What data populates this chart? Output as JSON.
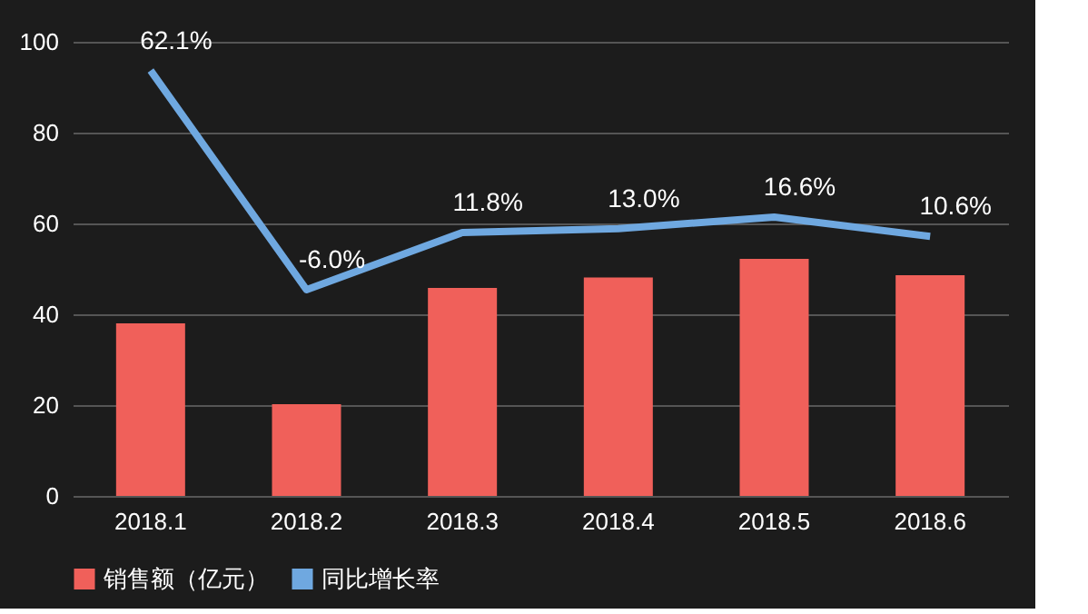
{
  "chart_data": {
    "type": "bar",
    "categories": [
      "2018.1",
      "2018.2",
      "2018.3",
      "2018.4",
      "2018.5",
      "2018.6"
    ],
    "series": [
      {
        "name": "销售额（亿元）",
        "color": "#f0605a",
        "values": [
          38,
          20.2,
          45.8,
          48.1,
          52.2,
          48.6
        ]
      },
      {
        "name": "同比增长率",
        "type": "line",
        "axis": "y2",
        "color": "#6fa8e0",
        "values": [
          62.1,
          -6.0,
          11.8,
          13.0,
          16.6,
          10.6
        ],
        "value_labels": [
          "62.1%",
          "-6.0%",
          "11.8%",
          "13.0%",
          "16.6%",
          "10.6%"
        ]
      }
    ],
    "ylim": [
      0,
      100
    ],
    "yticks": [
      0,
      20,
      40,
      60,
      80,
      100
    ],
    "y2lim": [
      -70,
      71
    ],
    "grid": "y",
    "legend": "bottom",
    "marker": "none",
    "line_style": "solid"
  }
}
